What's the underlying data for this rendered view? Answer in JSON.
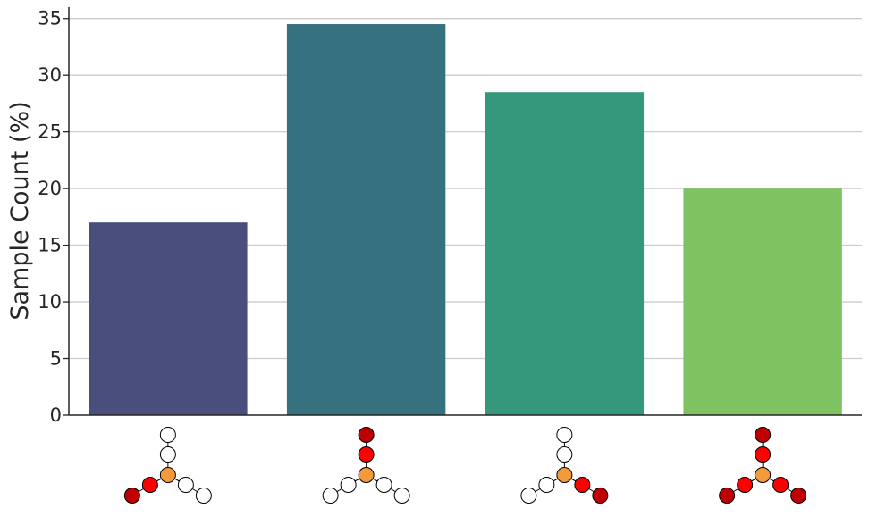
{
  "chart_data": {
    "type": "bar",
    "ylabel": "Sample Count (%)",
    "xlabel": "",
    "ylim": [
      0,
      36
    ],
    "yticks": [
      0,
      5,
      10,
      15,
      20,
      25,
      30,
      35
    ],
    "grid": "horizontal",
    "categories": [
      "motif-1",
      "motif-2",
      "motif-3",
      "motif-4"
    ],
    "values": [
      17.0,
      34.5,
      28.5,
      20.0
    ],
    "bar_colors": [
      "#4a4e7c",
      "#36717f",
      "#35977b",
      "#7fc262"
    ],
    "motif_node_colors": {
      "center": "#f39a3a",
      "red": "#ff0000",
      "dark_red": "#c00000",
      "empty": "#ffffff"
    },
    "motifs": [
      {
        "top": [
          "empty",
          "empty"
        ],
        "left": [
          "red",
          "dark_red"
        ],
        "right": [
          "empty",
          "empty"
        ]
      },
      {
        "top": [
          "red",
          "dark_red"
        ],
        "left": [
          "empty",
          "empty"
        ],
        "right": [
          "empty",
          "empty"
        ]
      },
      {
        "top": [
          "empty",
          "empty"
        ],
        "left": [
          "empty",
          "empty"
        ],
        "right": [
          "red",
          "dark_red"
        ]
      },
      {
        "top": [
          "red",
          "dark_red"
        ],
        "left": [
          "red",
          "dark_red"
        ],
        "right": [
          "red",
          "dark_red"
        ]
      }
    ]
  }
}
